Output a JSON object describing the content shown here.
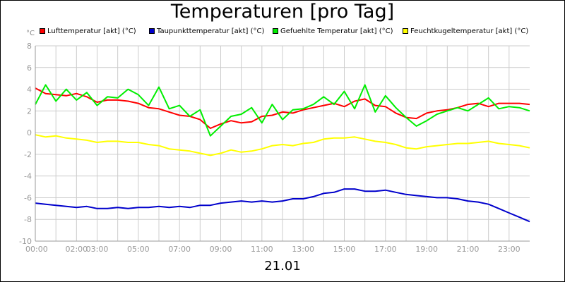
{
  "chart_data": {
    "type": "line",
    "title": "Temperaturen [pro Tag]",
    "ylabel": "°C",
    "xlabel": "21.01",
    "ylim": [
      -10,
      8
    ],
    "xlim": [
      0,
      24
    ],
    "y_ticks": [
      8,
      6,
      4,
      2,
      0,
      -2,
      -4,
      -6,
      -8,
      -10
    ],
    "x_ticks": [
      {
        "h": 0,
        "label": "00:00"
      },
      {
        "h": 2,
        "label": "02:00"
      },
      {
        "h": 3,
        "label": "03:00"
      },
      {
        "h": 5,
        "label": "05:00"
      },
      {
        "h": 7,
        "label": "07:00"
      },
      {
        "h": 9,
        "label": "09:00"
      },
      {
        "h": 11,
        "label": "11:00"
      },
      {
        "h": 13,
        "label": "13:00"
      },
      {
        "h": 15,
        "label": "15:00"
      },
      {
        "h": 17,
        "label": "17:00"
      },
      {
        "h": 19,
        "label": "19:00"
      },
      {
        "h": 21,
        "label": "21:00"
      },
      {
        "h": 23,
        "label": "23:00"
      }
    ],
    "grid": true,
    "legend_position": "top",
    "series": [
      {
        "name": "Lufttemperatur [akt] (°C)",
        "color": "#ff0000",
        "x": [
          0,
          0.5,
          1,
          1.5,
          2,
          2.5,
          3,
          3.5,
          4,
          4.5,
          5,
          5.5,
          6,
          6.5,
          7,
          7.5,
          8,
          8.5,
          9,
          9.5,
          10,
          10.5,
          11,
          11.5,
          12,
          12.5,
          13,
          13.5,
          14,
          14.5,
          15,
          15.5,
          16,
          16.5,
          17,
          17.5,
          18,
          18.5,
          19,
          19.5,
          20,
          20.5,
          21,
          21.5,
          22,
          22.5,
          23,
          23.5,
          24
        ],
        "values": [
          4.1,
          3.6,
          3.5,
          3.4,
          3.6,
          3.3,
          2.8,
          3.0,
          3.0,
          2.9,
          2.7,
          2.3,
          2.2,
          1.9,
          1.6,
          1.5,
          1.2,
          0.4,
          0.8,
          1.1,
          0.9,
          1.0,
          1.5,
          1.6,
          1.9,
          1.8,
          2.1,
          2.3,
          2.5,
          2.7,
          2.4,
          2.9,
          3.1,
          2.5,
          2.4,
          1.8,
          1.4,
          1.3,
          1.8,
          2.0,
          2.1,
          2.3,
          2.6,
          2.7,
          2.4,
          2.7,
          2.7,
          2.7,
          2.6
        ]
      },
      {
        "name": "Taupunkttemperatur [akt] (°C)",
        "color": "#0000cc",
        "x": [
          0,
          0.5,
          1,
          1.5,
          2,
          2.5,
          3,
          3.5,
          4,
          4.5,
          5,
          5.5,
          6,
          6.5,
          7,
          7.5,
          8,
          8.5,
          9,
          9.5,
          10,
          10.5,
          11,
          11.5,
          12,
          12.5,
          13,
          13.5,
          14,
          14.5,
          15,
          15.5,
          16,
          16.5,
          17,
          17.5,
          18,
          18.5,
          19,
          19.5,
          20,
          20.5,
          21,
          21.5,
          22,
          22.5,
          23,
          23.5,
          24
        ],
        "values": [
          -6.5,
          -6.6,
          -6.7,
          -6.8,
          -6.9,
          -6.8,
          -7.0,
          -7.0,
          -6.9,
          -7.0,
          -6.9,
          -6.9,
          -6.8,
          -6.9,
          -6.8,
          -6.9,
          -6.7,
          -6.7,
          -6.5,
          -6.4,
          -6.3,
          -6.4,
          -6.3,
          -6.4,
          -6.3,
          -6.1,
          -6.1,
          -5.9,
          -5.6,
          -5.5,
          -5.2,
          -5.2,
          -5.4,
          -5.4,
          -5.3,
          -5.5,
          -5.7,
          -5.8,
          -5.9,
          -6.0,
          -6.0,
          -6.1,
          -6.3,
          -6.4,
          -6.6,
          -7.0,
          -7.4,
          -7.8,
          -8.2
        ]
      },
      {
        "name": "Gefuehlte Temperatur [akt] (°C)",
        "color": "#00ee00",
        "x": [
          0,
          0.5,
          1,
          1.5,
          2,
          2.5,
          3,
          3.5,
          4,
          4.5,
          5,
          5.5,
          6,
          6.5,
          7,
          7.5,
          8,
          8.5,
          9,
          9.5,
          10,
          10.5,
          11,
          11.5,
          12,
          12.5,
          13,
          13.5,
          14,
          14.5,
          15,
          15.5,
          16,
          16.5,
          17,
          17.5,
          18,
          18.5,
          19,
          19.5,
          20,
          20.5,
          21,
          21.5,
          22,
          22.5,
          23,
          23.5,
          24
        ],
        "values": [
          2.6,
          4.4,
          2.9,
          4.0,
          3.0,
          3.7,
          2.5,
          3.3,
          3.2,
          4.0,
          3.5,
          2.5,
          4.2,
          2.2,
          2.5,
          1.5,
          2.1,
          -0.3,
          0.6,
          1.5,
          1.7,
          2.3,
          0.9,
          2.6,
          1.2,
          2.1,
          2.2,
          2.6,
          3.3,
          2.6,
          3.8,
          2.2,
          4.4,
          1.9,
          3.4,
          2.3,
          1.4,
          0.6,
          1.1,
          1.7,
          2.0,
          2.3,
          2.0,
          2.6,
          3.2,
          2.2,
          2.4,
          2.3,
          2.0
        ]
      },
      {
        "name": "Feuchtkugeltemperatur [akt] (°C)",
        "color": "#ffff00",
        "x": [
          0,
          0.5,
          1,
          1.5,
          2,
          2.5,
          3,
          3.5,
          4,
          4.5,
          5,
          5.5,
          6,
          6.5,
          7,
          7.5,
          8,
          8.5,
          9,
          9.5,
          10,
          10.5,
          11,
          11.5,
          12,
          12.5,
          13,
          13.5,
          14,
          14.5,
          15,
          15.5,
          16,
          16.5,
          17,
          17.5,
          18,
          18.5,
          19,
          19.5,
          20,
          20.5,
          21,
          21.5,
          22,
          22.5,
          23,
          23.5,
          24
        ],
        "values": [
          -0.2,
          -0.4,
          -0.3,
          -0.5,
          -0.6,
          -0.7,
          -0.9,
          -0.8,
          -0.8,
          -0.9,
          -0.9,
          -1.1,
          -1.2,
          -1.5,
          -1.6,
          -1.7,
          -1.9,
          -2.1,
          -1.9,
          -1.6,
          -1.8,
          -1.7,
          -1.5,
          -1.2,
          -1.1,
          -1.2,
          -1.0,
          -0.9,
          -0.6,
          -0.5,
          -0.5,
          -0.4,
          -0.6,
          -0.8,
          -0.9,
          -1.1,
          -1.4,
          -1.5,
          -1.3,
          -1.2,
          -1.1,
          -1.0,
          -1.0,
          -0.9,
          -0.8,
          -1.0,
          -1.1,
          -1.2,
          -1.4
        ]
      }
    ]
  }
}
